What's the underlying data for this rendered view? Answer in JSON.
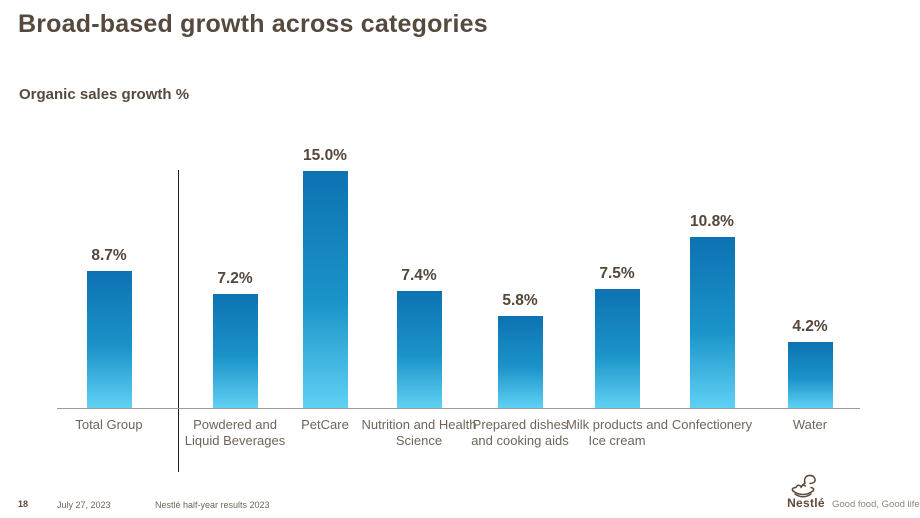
{
  "slide": {
    "title": "Broad-based growth across categories",
    "subtitle": "Organic sales growth %"
  },
  "chart_data": {
    "type": "bar",
    "title": "Organic sales growth %",
    "categories": [
      "Total Group",
      "Powdered and Liquid Beverages",
      "PetCare",
      "Nutrition and Health Science",
      "Prepared dishes and cooking aids",
      "Milk products and Ice cream",
      "Confectionery",
      "Water"
    ],
    "values": [
      8.7,
      7.2,
      15.0,
      7.4,
      5.8,
      7.5,
      10.8,
      4.2
    ],
    "value_labels": [
      "8.7%",
      "7.2%",
      "15.0%",
      "7.4%",
      "5.8%",
      "7.5%",
      "10.8%",
      "4.2%"
    ],
    "xlabel": "",
    "ylabel": "Organic sales growth %",
    "ylim": [
      0,
      15.5
    ],
    "grid": false,
    "legend": false,
    "separator_after_first_bar": true,
    "bar_colors": {
      "top": "#0d72b2",
      "mid": "#1b93c9",
      "bottom": "#5fd1f4"
    }
  },
  "footer": {
    "page_number": "18",
    "date": "July 27, 2023",
    "doc_title": "Nestlé half-year results 2023"
  },
  "brand": {
    "name": "Nestlé",
    "tagline": "Good food, Good life",
    "logo_color": "#5f4b38"
  },
  "colors": {
    "title_text": "#564a3e",
    "value_text": "#54473a",
    "category_text": "#6f6457",
    "axis_line": "#9b9b96",
    "divider_line": "#1e1e1e",
    "background": "#ffffff"
  }
}
